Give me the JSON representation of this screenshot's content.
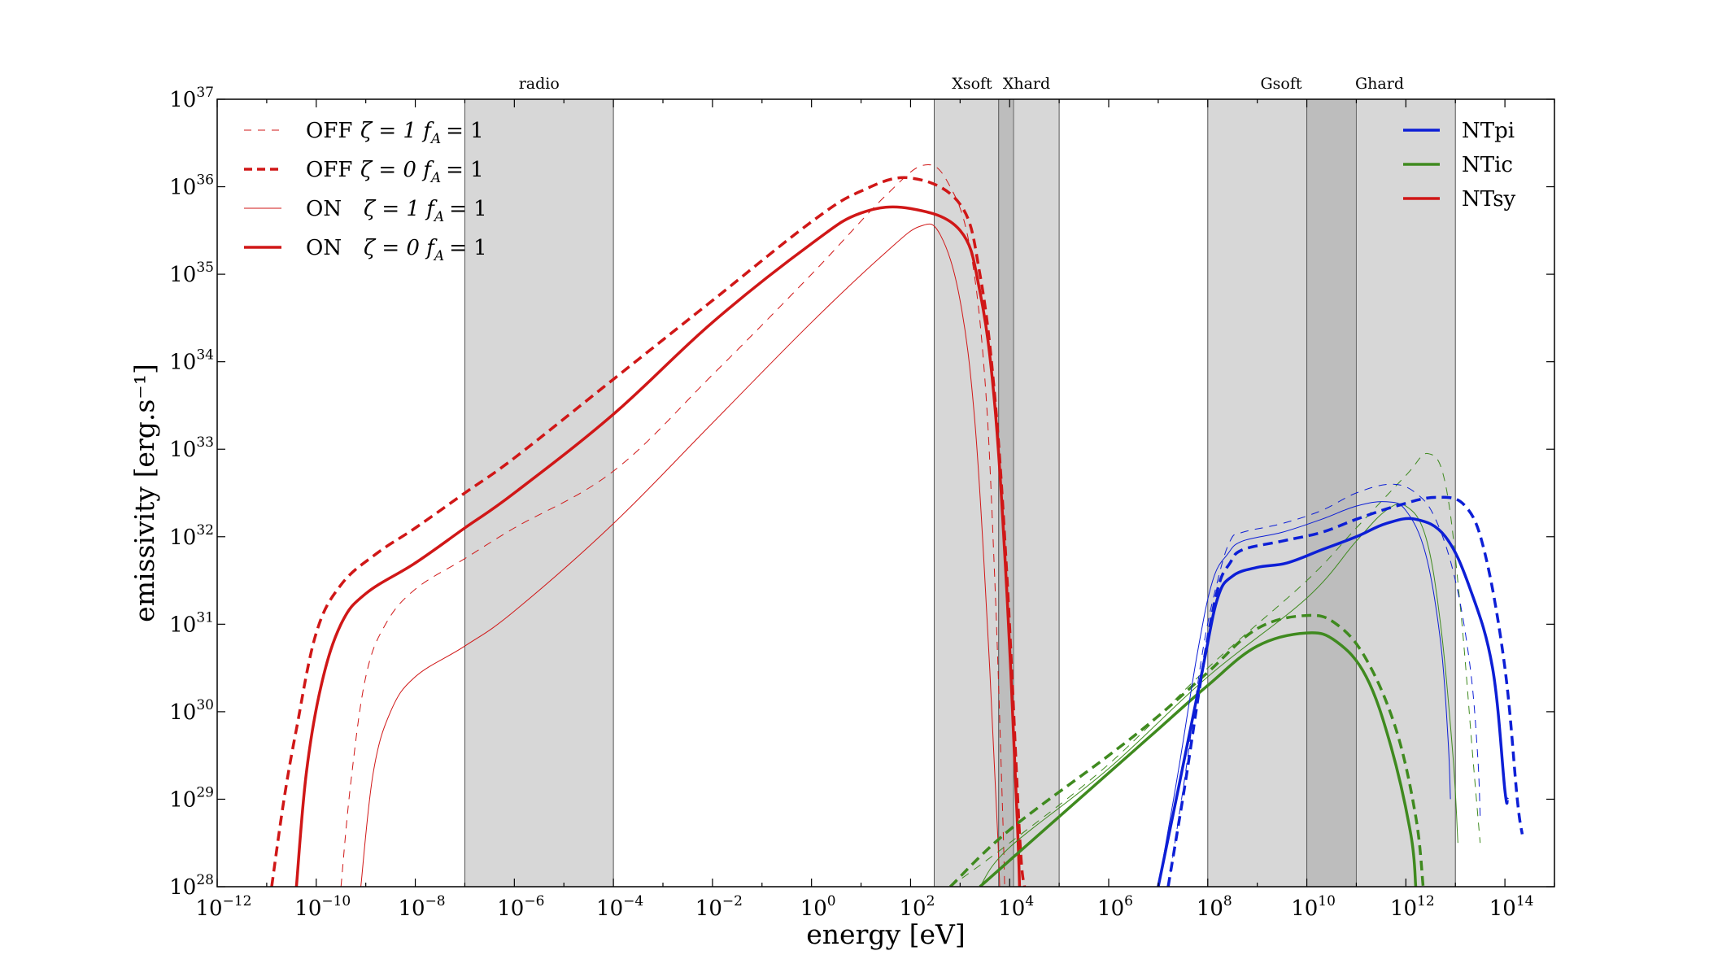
{
  "chart_data": {
    "type": "line",
    "xscale": "log",
    "yscale": "log",
    "xlabel": "energy [eV]",
    "ylabel": "emissivity [erg.s⁻¹]",
    "xlim": [
      1e-12,
      1000000000000000.0
    ],
    "ylim": [
      1e+28,
      1e+37
    ],
    "x_tick_exponents": [
      -12,
      -10,
      -8,
      -6,
      -4,
      -2,
      0,
      2,
      4,
      6,
      8,
      10,
      12,
      14
    ],
    "y_tick_exponents": [
      28,
      29,
      30,
      31,
      32,
      33,
      34,
      35,
      36,
      37
    ],
    "tick_base": "10",
    "bands": [
      {
        "name": "radio",
        "range": [
          1e-07,
          0.0001
        ],
        "label": "radio"
      },
      {
        "name": "xsoft",
        "range": [
          300,
          12000
        ],
        "label": "Xsoft"
      },
      {
        "name": "xhard",
        "range": [
          6000,
          100000
        ],
        "label": "Xhard"
      },
      {
        "name": "gsoft",
        "range": [
          100000000.0,
          100000000000.0
        ],
        "label": "Gsoft"
      },
      {
        "name": "ghard",
        "range": [
          10000000000.0,
          10000000000000.0
        ],
        "label": "Ghard"
      }
    ],
    "style_legend": [
      {
        "label": "OFF",
        "math": "ζ = 1 f",
        "sub": "A",
        "tail": "= 1",
        "width": 1,
        "dash": true
      },
      {
        "label": "OFF",
        "math": "ζ = 0 f",
        "sub": "A",
        "tail": "= 1",
        "width": 3.5,
        "dash": true
      },
      {
        "label": "ON",
        "math": "ζ = 1 f",
        "sub": "A",
        "tail": "= 1",
        "width": 1,
        "dash": false
      },
      {
        "label": "ON",
        "math": "ζ = 0 f",
        "sub": "A",
        "tail": "= 1",
        "width": 3.5,
        "dash": false
      }
    ],
    "component_legend": [
      {
        "label": "NTpi",
        "color": "#0d1fd6"
      },
      {
        "label": "NTic",
        "color": "#3f8a1f"
      },
      {
        "label": "NTsy",
        "color": "#d01717"
      }
    ],
    "series": [
      {
        "name": "NTsy OFF ζ=1",
        "component": "NTsy",
        "style": 0,
        "points": [
          [
            -9.5,
            28
          ],
          [
            -9.3,
            29.2
          ],
          [
            -9.0,
            30.4
          ],
          [
            -8.6,
            31.0
          ],
          [
            -8.0,
            31.4
          ],
          [
            -7.0,
            31.75
          ],
          [
            -6.0,
            32.1
          ],
          [
            -4.0,
            32.75
          ],
          [
            -2.0,
            33.85
          ],
          [
            0.0,
            35.0
          ],
          [
            1.5,
            35.9
          ],
          [
            2.3,
            36.25
          ],
          [
            2.8,
            36.0
          ],
          [
            3.2,
            35.3
          ],
          [
            3.5,
            33.8
          ],
          [
            3.7,
            31.5
          ],
          [
            3.85,
            29.0
          ],
          [
            3.9,
            28
          ]
        ]
      },
      {
        "name": "NTsy OFF ζ=0",
        "component": "NTsy",
        "style": 1,
        "points": [
          [
            -10.9,
            28
          ],
          [
            -10.65,
            29.0
          ],
          [
            -10.4,
            29.8
          ],
          [
            -10.0,
            30.9
          ],
          [
            -9.5,
            31.45
          ],
          [
            -8.8,
            31.8
          ],
          [
            -8.0,
            32.1
          ],
          [
            -7.0,
            32.5
          ],
          [
            -6.0,
            32.9
          ],
          [
            -4.0,
            33.8
          ],
          [
            -2.0,
            34.7
          ],
          [
            0.0,
            35.6
          ],
          [
            1.0,
            35.95
          ],
          [
            2.0,
            36.1
          ],
          [
            3.0,
            35.8
          ],
          [
            3.4,
            35.0
          ],
          [
            3.7,
            33.6
          ],
          [
            3.95,
            31.5
          ],
          [
            4.2,
            28.6
          ],
          [
            4.3,
            28
          ]
        ]
      },
      {
        "name": "NTsy ON ζ=1",
        "component": "NTsy",
        "style": 2,
        "points": [
          [
            -9.1,
            28
          ],
          [
            -8.85,
            29.3
          ],
          [
            -8.5,
            30.0
          ],
          [
            -8.0,
            30.4
          ],
          [
            -7.0,
            30.75
          ],
          [
            -6.0,
            31.15
          ],
          [
            -4.0,
            32.15
          ],
          [
            -2.0,
            33.3
          ],
          [
            0.0,
            34.45
          ],
          [
            1.5,
            35.25
          ],
          [
            2.2,
            35.55
          ],
          [
            2.6,
            35.45
          ],
          [
            3.0,
            34.7
          ],
          [
            3.3,
            33.3
          ],
          [
            3.55,
            31.0
          ],
          [
            3.75,
            28.7
          ],
          [
            3.8,
            28
          ]
        ]
      },
      {
        "name": "NTsy ON ζ=0",
        "component": "NTsy",
        "style": 3,
        "points": [
          [
            -10.4,
            28
          ],
          [
            -10.2,
            29.3
          ],
          [
            -9.9,
            30.3
          ],
          [
            -9.5,
            31.0
          ],
          [
            -9.0,
            31.35
          ],
          [
            -8.0,
            31.7
          ],
          [
            -7.0,
            32.1
          ],
          [
            -6.0,
            32.5
          ],
          [
            -4.0,
            33.4
          ],
          [
            -2.0,
            34.45
          ],
          [
            0.0,
            35.35
          ],
          [
            1.0,
            35.7
          ],
          [
            2.0,
            35.75
          ],
          [
            3.0,
            35.5
          ],
          [
            3.4,
            34.8
          ],
          [
            3.7,
            33.5
          ],
          [
            3.95,
            31.3
          ],
          [
            4.15,
            28.8
          ],
          [
            4.2,
            28
          ]
        ]
      },
      {
        "name": "NTic OFF ζ=1",
        "component": "NTic",
        "style": 0,
        "points": [
          [
            2.8,
            28
          ],
          [
            4.0,
            28.5
          ],
          [
            6.0,
            29.4
          ],
          [
            8.0,
            30.5
          ],
          [
            10.0,
            31.5
          ],
          [
            11.0,
            32.1
          ],
          [
            12.0,
            32.7
          ],
          [
            12.45,
            32.95
          ],
          [
            12.8,
            32.6
          ],
          [
            13.1,
            31.2
          ],
          [
            13.35,
            29.5
          ],
          [
            13.5,
            28.5
          ]
        ]
      },
      {
        "name": "NTic OFF ζ=0",
        "component": "NTic",
        "style": 1,
        "points": [
          [
            2.8,
            28
          ],
          [
            4.0,
            28.65
          ],
          [
            6.0,
            29.5
          ],
          [
            7.0,
            29.95
          ],
          [
            8.0,
            30.45
          ],
          [
            9.0,
            30.95
          ],
          [
            10.0,
            31.1
          ],
          [
            10.6,
            31.0
          ],
          [
            11.2,
            30.6
          ],
          [
            11.8,
            29.8
          ],
          [
            12.2,
            28.8
          ],
          [
            12.35,
            28
          ]
        ]
      },
      {
        "name": "NTic ON ζ=1",
        "component": "NTic",
        "style": 2,
        "points": [
          [
            3.4,
            28
          ],
          [
            4.0,
            28.45
          ],
          [
            6.0,
            29.35
          ],
          [
            8.0,
            30.4
          ],
          [
            10.0,
            31.3
          ],
          [
            11.0,
            31.95
          ],
          [
            11.6,
            32.3
          ],
          [
            12.0,
            32.35
          ],
          [
            12.4,
            32.0
          ],
          [
            12.7,
            31.0
          ],
          [
            12.95,
            29.5
          ],
          [
            13.05,
            28.5
          ]
        ]
      },
      {
        "name": "NTic ON ζ=0",
        "component": "NTic",
        "style": 3,
        "points": [
          [
            3.4,
            28
          ],
          [
            4.0,
            28.3
          ],
          [
            6.0,
            29.3
          ],
          [
            7.0,
            29.8
          ],
          [
            8.0,
            30.3
          ],
          [
            9.0,
            30.75
          ],
          [
            10.0,
            30.9
          ],
          [
            10.6,
            30.8
          ],
          [
            11.2,
            30.4
          ],
          [
            11.7,
            29.6
          ],
          [
            12.1,
            28.6
          ],
          [
            12.2,
            28
          ]
        ]
      },
      {
        "name": "NTpi OFF ζ=1",
        "component": "NTpi",
        "style": 0,
        "points": [
          [
            7.2,
            28
          ],
          [
            7.55,
            29.3
          ],
          [
            7.9,
            30.7
          ],
          [
            8.2,
            31.5
          ],
          [
            8.45,
            31.95
          ],
          [
            8.7,
            32.05
          ],
          [
            9.5,
            32.15
          ],
          [
            10.3,
            32.3
          ],
          [
            11.0,
            32.5
          ],
          [
            11.7,
            32.6
          ],
          [
            12.2,
            32.5
          ],
          [
            12.6,
            32.2
          ],
          [
            13.0,
            31.5
          ],
          [
            13.3,
            30.5
          ],
          [
            13.45,
            29.5
          ],
          [
            13.5,
            28.8
          ]
        ]
      },
      {
        "name": "NTpi OFF ζ=0",
        "component": "NTpi",
        "style": 1,
        "points": [
          [
            7.2,
            28
          ],
          [
            7.55,
            29.2
          ],
          [
            7.9,
            30.5
          ],
          [
            8.2,
            31.4
          ],
          [
            8.45,
            31.7
          ],
          [
            8.7,
            31.85
          ],
          [
            9.5,
            31.95
          ],
          [
            10.3,
            32.05
          ],
          [
            11.0,
            32.2
          ],
          [
            11.8,
            32.35
          ],
          [
            12.6,
            32.45
          ],
          [
            13.2,
            32.35
          ],
          [
            13.6,
            31.8
          ],
          [
            14.0,
            30.5
          ],
          [
            14.25,
            29.0
          ],
          [
            14.35,
            28.6
          ]
        ]
      },
      {
        "name": "NTpi ON ζ=1",
        "component": "NTpi",
        "style": 2,
        "points": [
          [
            7.0,
            28
          ],
          [
            7.4,
            29.3
          ],
          [
            7.8,
            30.7
          ],
          [
            8.1,
            31.5
          ],
          [
            8.4,
            31.8
          ],
          [
            8.7,
            31.95
          ],
          [
            9.5,
            32.05
          ],
          [
            10.3,
            32.2
          ],
          [
            11.0,
            32.35
          ],
          [
            11.6,
            32.4
          ],
          [
            12.0,
            32.3
          ],
          [
            12.4,
            31.8
          ],
          [
            12.7,
            30.8
          ],
          [
            12.85,
            29.7
          ],
          [
            12.9,
            29.0
          ]
        ]
      },
      {
        "name": "NTpi ON ζ=0",
        "component": "NTpi",
        "style": 3,
        "points": [
          [
            7.0,
            28
          ],
          [
            7.4,
            29.1
          ],
          [
            7.9,
            30.5
          ],
          [
            8.2,
            31.3
          ],
          [
            8.5,
            31.55
          ],
          [
            9.0,
            31.65
          ],
          [
            9.6,
            31.7
          ],
          [
            10.3,
            31.85
          ],
          [
            11.0,
            32.0
          ],
          [
            11.6,
            32.15
          ],
          [
            12.2,
            32.2
          ],
          [
            12.8,
            32.0
          ],
          [
            13.3,
            31.4
          ],
          [
            13.75,
            30.5
          ],
          [
            14.0,
            29.1
          ],
          [
            14.05,
            29.0
          ]
        ]
      }
    ]
  }
}
